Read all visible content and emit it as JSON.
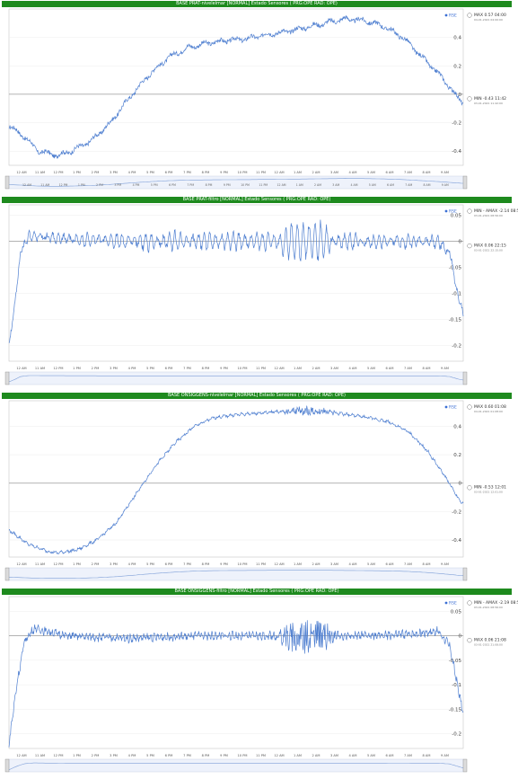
{
  "chart_data": [
    {
      "type": "line",
      "title": "BASE PRAT-nivelelmar [NORMAL] Estado Sensores ( PRG:OPE RAD: OPE)",
      "legend": "RSE",
      "ylim": [
        -0.5,
        0.6
      ],
      "yticks": [
        -0.4,
        -0.2,
        0,
        0.2,
        0.4
      ],
      "ytick_labels": [
        "-0.4",
        "-0.2",
        "0",
        "0.2",
        "0.4"
      ],
      "xticks": [
        "12 AM",
        "11 AM",
        "12 PM",
        "1 PM",
        "2 PM",
        "3 PM",
        "4 PM",
        "5 PM",
        "6 PM",
        "7 PM",
        "8 PM",
        "9 PM",
        "10 PM",
        "11 PM",
        "12 AM",
        "1 AM",
        "2 AM",
        "3 AM",
        "4 AM",
        "5 AM",
        "6 AM",
        "7 AM",
        "8 AM",
        "9 AM"
      ],
      "navigator_ticks": [
        "12 AM",
        "11 AM",
        "12 PM",
        "1 PM",
        "2 PM",
        "3 PM",
        "4 PM",
        "5 PM",
        "6 PM",
        "7 PM",
        "8 PM",
        "9 PM",
        "10 PM",
        "11 PM",
        "12 AM",
        "1 AM",
        "2 AM",
        "3 AM",
        "4 AM",
        "5 AM",
        "6 AM",
        "7 AM",
        "8 AM",
        "9 AM"
      ],
      "max_label": "MAX 0.57 04:00",
      "max_sub": "04-01-2021 04:00:00",
      "min_label": "MIN -0.43 11:42",
      "min_sub": "03-01-2021 11:42:00",
      "anchors": [
        [
          0,
          -0.22
        ],
        [
          0.8,
          -0.3
        ],
        [
          1.5,
          -0.4
        ],
        [
          2.5,
          -0.43
        ],
        [
          3.2,
          -0.4
        ],
        [
          4.2,
          -0.33
        ],
        [
          5.2,
          -0.2
        ],
        [
          6.2,
          -0.02
        ],
        [
          7.2,
          0.14
        ],
        [
          8.2,
          0.26
        ],
        [
          9.2,
          0.33
        ],
        [
          10.2,
          0.36
        ],
        [
          11.2,
          0.38
        ],
        [
          12.2,
          0.39
        ],
        [
          13.2,
          0.42
        ],
        [
          14.2,
          0.44
        ],
        [
          15.2,
          0.47
        ],
        [
          16.2,
          0.5
        ],
        [
          17.2,
          0.53
        ],
        [
          18.2,
          0.52
        ],
        [
          19.2,
          0.48
        ],
        [
          20.2,
          0.4
        ],
        [
          21.2,
          0.26
        ],
        [
          22.2,
          0.12
        ],
        [
          23,
          -0.02
        ],
        [
          23.3,
          -0.06
        ]
      ],
      "noise": 0.015,
      "noise_freq": 1.3
    },
    {
      "type": "line",
      "title": "BASE PRAT-filtro [NORMAL] Estado Sensores ( PRG:OPE RAD: OPE)",
      "legend": "RSE",
      "ylim": [
        -0.23,
        0.07
      ],
      "yticks": [
        -0.2,
        -0.15,
        -0.1,
        -0.05,
        0,
        0.05
      ],
      "ytick_labels": [
        "-0.2",
        "-0.15",
        "-0.1",
        "-0.05",
        "0",
        "0.05"
      ],
      "xticks": [
        "12 AM",
        "11 AM",
        "12 PM",
        "1 PM",
        "2 PM",
        "3 PM",
        "4 PM",
        "5 PM",
        "6 PM",
        "7 PM",
        "8 PM",
        "9 PM",
        "10 PM",
        "11 PM",
        "12 AM",
        "1 AM",
        "2 AM",
        "3 AM",
        "4 AM",
        "5 AM",
        "6 AM",
        "7 AM",
        "8 AM",
        "9 AM"
      ],
      "max_label": "MIN - AMAX -2.14 08:56 - 0.17 08:56",
      "max_sub": "03-01-2021 08:56:00",
      "min_label": "MAX 0.06 22:15",
      "min_sub": "03-01-2021 22:15:00",
      "anchors": [
        [
          0,
          -0.2
        ],
        [
          0.3,
          -0.12
        ],
        [
          0.6,
          -0.02
        ],
        [
          1,
          0.01
        ],
        [
          3,
          0.005
        ],
        [
          6,
          0.0
        ],
        [
          10,
          0.0
        ],
        [
          13,
          0.0
        ],
        [
          14,
          0.0
        ],
        [
          15.5,
          0.0
        ],
        [
          17,
          0.0
        ],
        [
          20,
          0.0
        ],
        [
          22,
          0.0
        ],
        [
          22.6,
          -0.02
        ],
        [
          23,
          -0.1
        ],
        [
          23.3,
          -0.14
        ]
      ],
      "osc": [
        [
          0.8,
          22.7,
          0.012
        ],
        [
          14,
          16.5,
          0.022
        ]
      ],
      "noise": 0.005,
      "noise_freq": 4.2
    },
    {
      "type": "line",
      "title": "BASE ONSIGGENS-nivelelmar [NORMAL] Estado Sensores ( PRG:OPE RAD: OPE)",
      "legend": "RSE",
      "ylim": [
        -0.52,
        0.58
      ],
      "yticks": [
        -0.4,
        -0.2,
        0,
        0.2,
        0.4
      ],
      "ytick_labels": [
        "-0.4",
        "-0.2",
        "0",
        "0.2",
        "0.4"
      ],
      "xticks": [
        "12 AM",
        "11 AM",
        "12 PM",
        "1 PM",
        "2 PM",
        "3 PM",
        "4 PM",
        "5 PM",
        "6 PM",
        "7 PM",
        "8 PM",
        "9 PM",
        "10 PM",
        "11 PM",
        "12 AM",
        "1 AM",
        "2 AM",
        "3 AM",
        "4 AM",
        "5 AM",
        "6 AM",
        "7 AM",
        "8 AM",
        "9 AM"
      ],
      "max_label": "MAX 0.60 01:08",
      "max_sub": "04-01-2021 01:08:00",
      "min_label": "MIN -0.53 12:01",
      "min_sub": "03-01-2021 12:01:00",
      "anchors": [
        [
          0,
          -0.33
        ],
        [
          1,
          -0.43
        ],
        [
          2,
          -0.48
        ],
        [
          2.5,
          -0.49
        ],
        [
          3.5,
          -0.47
        ],
        [
          4.5,
          -0.4
        ],
        [
          5.5,
          -0.28
        ],
        [
          6.5,
          -0.08
        ],
        [
          7.5,
          0.12
        ],
        [
          8.5,
          0.28
        ],
        [
          9.5,
          0.4
        ],
        [
          10.5,
          0.46
        ],
        [
          11.5,
          0.48
        ],
        [
          12.5,
          0.49
        ],
        [
          13.5,
          0.5
        ],
        [
          14.5,
          0.51
        ],
        [
          15.5,
          0.51
        ],
        [
          16.5,
          0.5
        ],
        [
          17.5,
          0.48
        ],
        [
          18.5,
          0.46
        ],
        [
          19.5,
          0.43
        ],
        [
          20.5,
          0.36
        ],
        [
          21.5,
          0.22
        ],
        [
          22.5,
          0.02
        ],
        [
          23,
          -0.1
        ],
        [
          23.3,
          -0.15
        ]
      ],
      "noise": 0.008,
      "noise_freq": 3.5,
      "burst": [
        [
          13.5,
          17.0,
          0.03
        ]
      ]
    },
    {
      "type": "line",
      "title": "BASE ONSIGGENS-filtro [NORMAL] Estado Sensores ( PRG:OPE RAD: OPE)",
      "legend": "RSE",
      "ylim": [
        -0.23,
        0.08
      ],
      "yticks": [
        -0.2,
        -0.15,
        -0.1,
        -0.05,
        0,
        0.05
      ],
      "ytick_labels": [
        "-0.2",
        "-0.15",
        "-0.1",
        "-0.05",
        "0",
        "0.05"
      ],
      "xticks": [
        "12 AM",
        "11 AM",
        "12 PM",
        "1 PM",
        "2 PM",
        "3 PM",
        "4 PM",
        "5 PM",
        "6 PM",
        "7 PM",
        "8 PM",
        "9 PM",
        "10 PM",
        "11 PM",
        "12 AM",
        "1 AM",
        "2 AM",
        "3 AM",
        "4 AM",
        "5 AM",
        "6 AM",
        "7 AM",
        "8 AM",
        "9 AM"
      ],
      "max_label": "MIN - AMAX -2.19 08:56 - 0.3 08:56",
      "max_sub": "03-01-2021 08:56:00",
      "min_label": "MAX 0.06 21:08",
      "min_sub": "03-01-2021 21:08:00",
      "anchors": [
        [
          0,
          -0.22
        ],
        [
          0.4,
          -0.1
        ],
        [
          0.8,
          -0.01
        ],
        [
          1.3,
          0.015
        ],
        [
          3,
          0.0
        ],
        [
          6,
          -0.005
        ],
        [
          10,
          0.0
        ],
        [
          13,
          0.0
        ],
        [
          16,
          0.0
        ],
        [
          19,
          0.0
        ],
        [
          21,
          0.005
        ],
        [
          22,
          0.01
        ],
        [
          22.6,
          -0.02
        ],
        [
          23,
          -0.1
        ],
        [
          23.3,
          -0.16
        ]
      ],
      "noise": 0.006,
      "noise_freq": 6.0,
      "burst": [
        [
          13.5,
          17.0,
          0.035
        ]
      ]
    }
  ]
}
